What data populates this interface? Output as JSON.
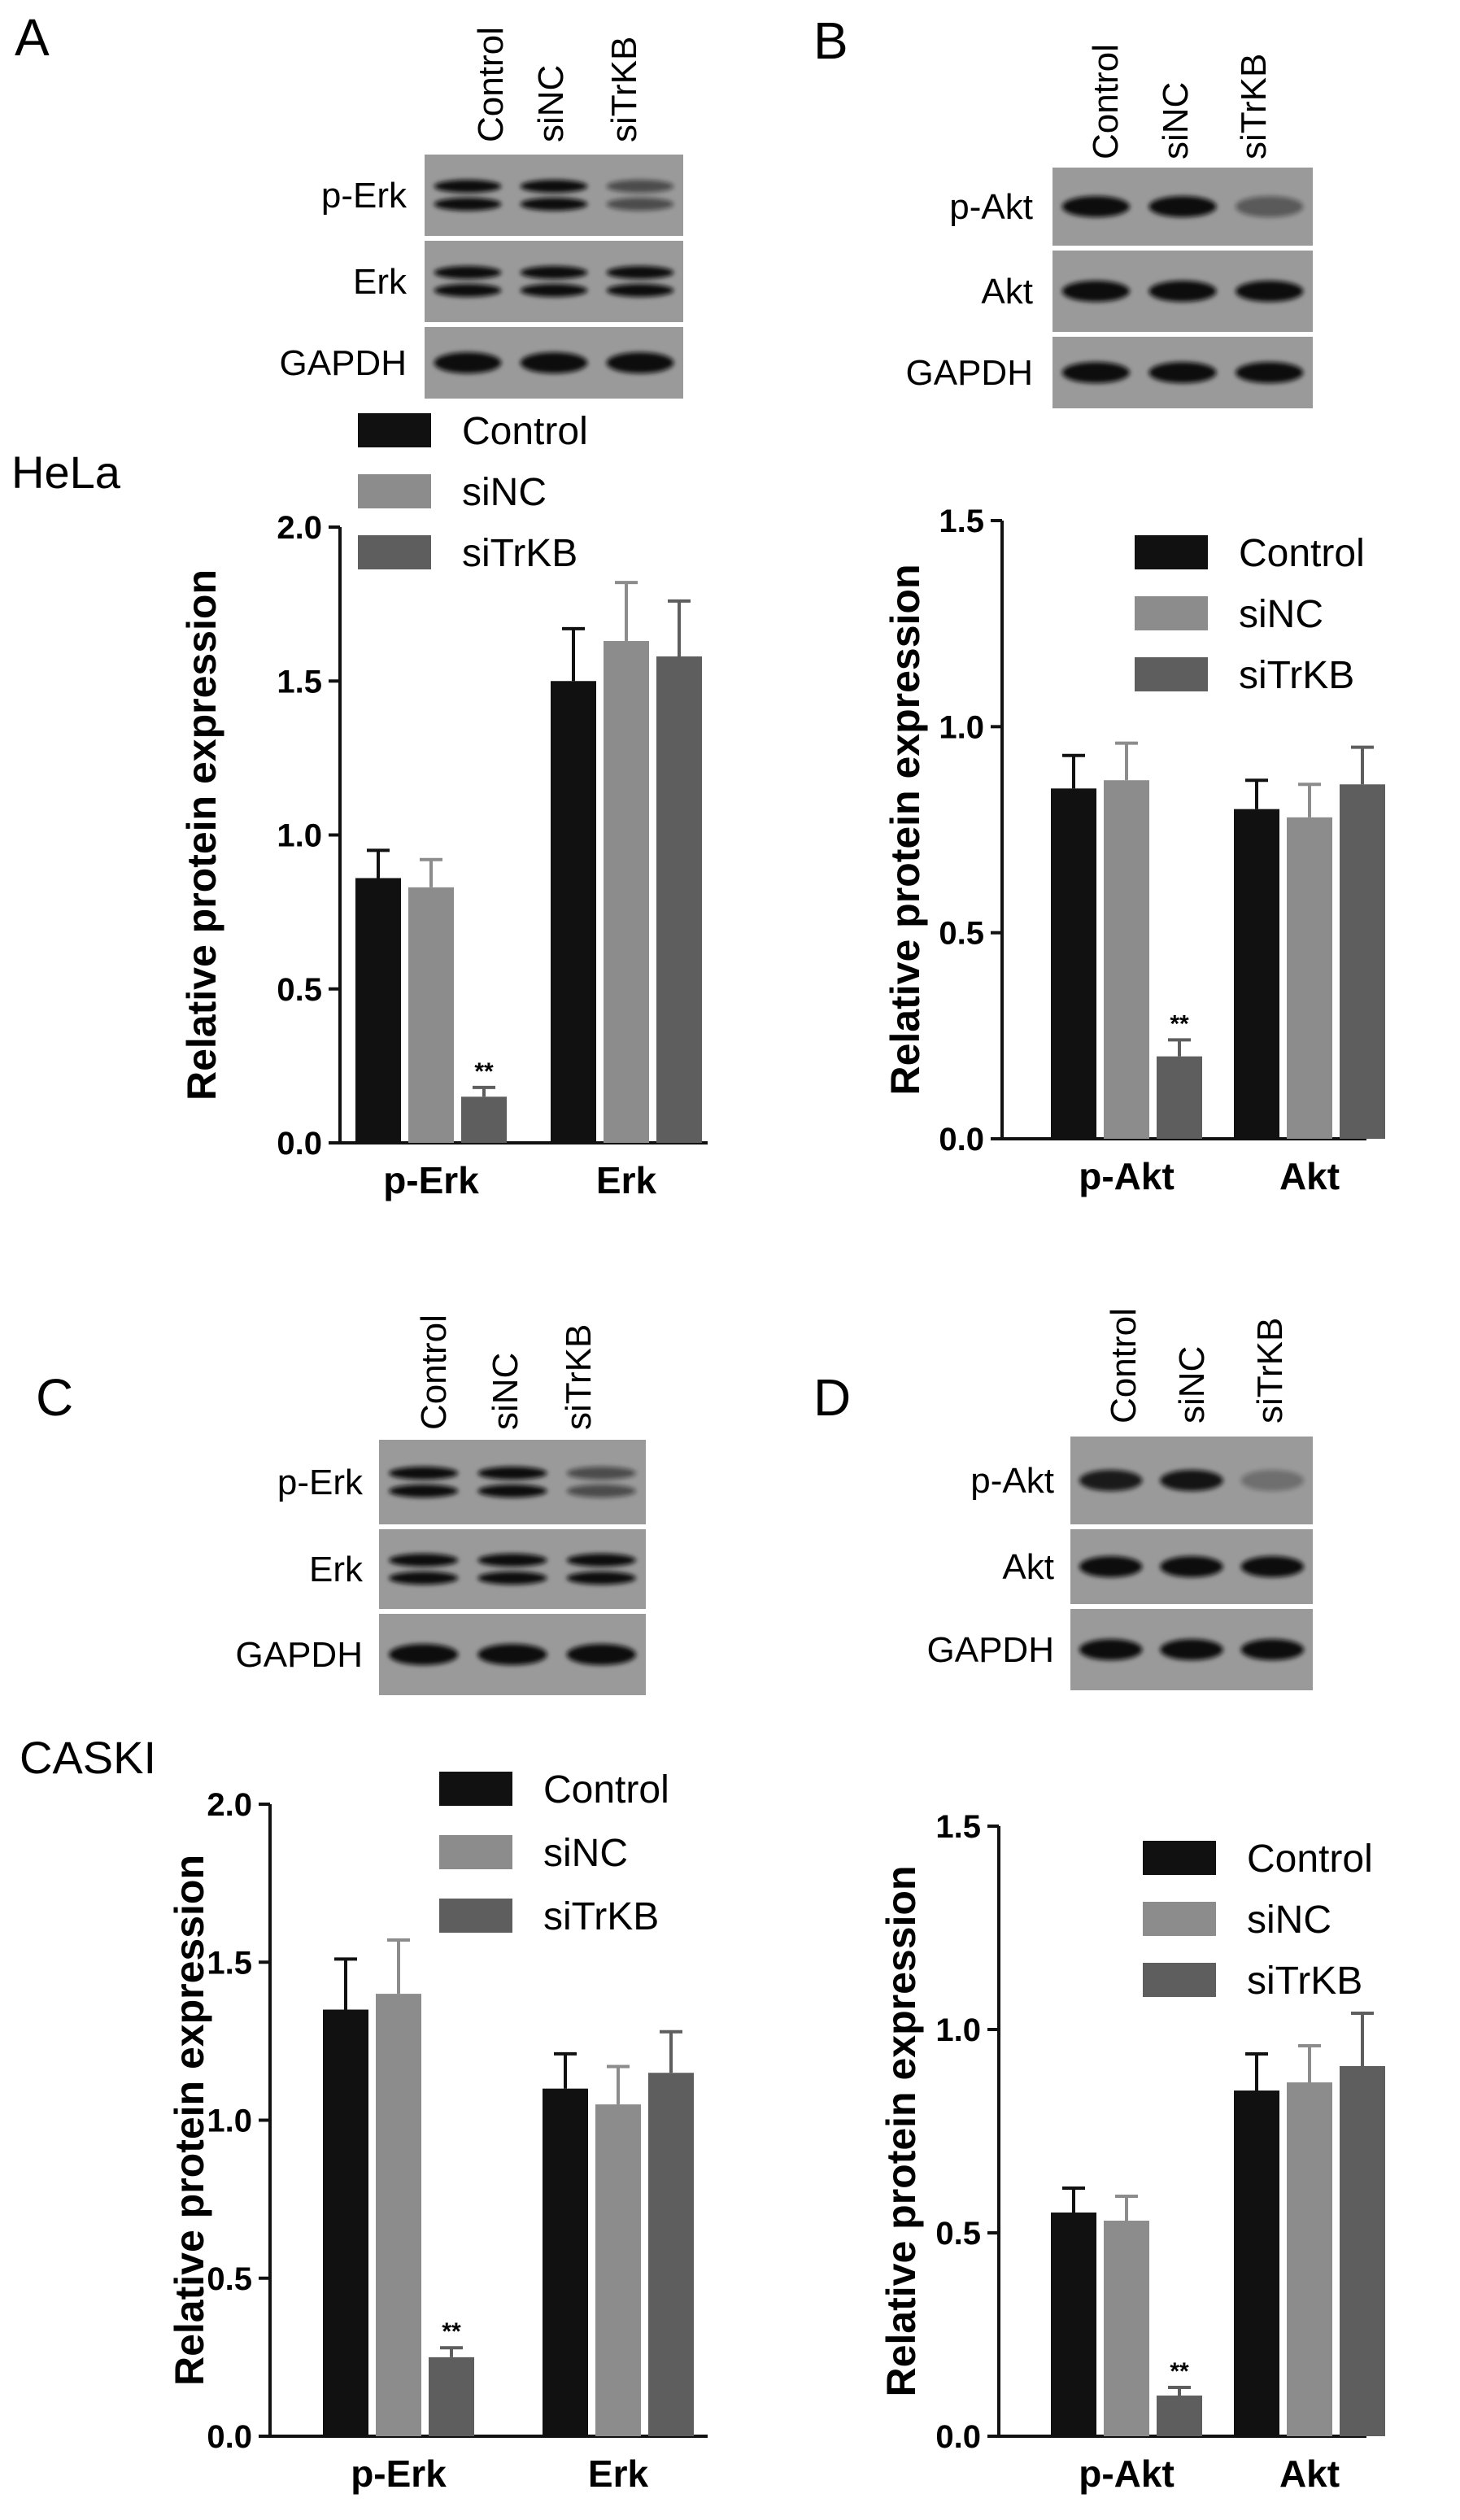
{
  "panel_letters": [
    "A",
    "B",
    "C",
    "D"
  ],
  "cell_lines": [
    "HeLa",
    "CASKI"
  ],
  "lanes": [
    "Control",
    "siNC",
    "siTrKB"
  ],
  "colors": {
    "Control": "#111111",
    "siNC": "#8c8c8c",
    "siTrKB": "#5e5e5e"
  },
  "blots": [
    {
      "panel": "A",
      "bands": [
        "p-Erk",
        "Erk",
        "GAPDH"
      ]
    },
    {
      "panel": "B",
      "bands": [
        "p-Akt",
        "Akt",
        "GAPDH"
      ]
    },
    {
      "panel": "C",
      "bands": [
        "p-Erk",
        "Erk",
        "GAPDH"
      ]
    },
    {
      "panel": "D",
      "bands": [
        "p-Akt",
        "Akt",
        "GAPDH"
      ]
    }
  ],
  "chart_data": [
    {
      "panel": "A",
      "type": "bar",
      "categories": [
        "p-Erk",
        "Erk"
      ],
      "series": [
        {
          "name": "Control",
          "values": [
            0.86,
            1.5
          ],
          "errors": [
            0.09,
            0.17
          ]
        },
        {
          "name": "siNC",
          "values": [
            0.83,
            1.63
          ],
          "errors": [
            0.09,
            0.19
          ]
        },
        {
          "name": "siTrKB",
          "values": [
            0.15,
            1.58
          ],
          "errors": [
            0.03,
            0.18
          ]
        }
      ],
      "annotations": [
        {
          "category": "p-Erk",
          "series": "siTrKB",
          "text": "**"
        }
      ],
      "ylabel": "Relative protein expression",
      "ylim": [
        0,
        2.0
      ],
      "yticks": [
        "0.0",
        "0.5",
        "1.0",
        "1.5",
        "2.0"
      ],
      "legend": "top-left"
    },
    {
      "panel": "B",
      "type": "bar",
      "categories": [
        "p-Akt",
        "Akt"
      ],
      "series": [
        {
          "name": "Control",
          "values": [
            0.85,
            0.8
          ],
          "errors": [
            0.08,
            0.07
          ]
        },
        {
          "name": "siNC",
          "values": [
            0.87,
            0.78
          ],
          "errors": [
            0.09,
            0.08
          ]
        },
        {
          "name": "siTrKB",
          "values": [
            0.2,
            0.86
          ],
          "errors": [
            0.04,
            0.09
          ]
        }
      ],
      "annotations": [
        {
          "category": "p-Akt",
          "series": "siTrKB",
          "text": "**"
        }
      ],
      "ylabel": "Relative protein expression",
      "ylim": [
        0,
        1.5
      ],
      "yticks": [
        "0.0",
        "0.5",
        "1.0",
        "1.5"
      ],
      "legend": "top-right"
    },
    {
      "panel": "C",
      "type": "bar",
      "categories": [
        "p-Erk",
        "Erk"
      ],
      "series": [
        {
          "name": "Control",
          "values": [
            1.35,
            1.1
          ],
          "errors": [
            0.16,
            0.11
          ]
        },
        {
          "name": "siNC",
          "values": [
            1.4,
            1.05
          ],
          "errors": [
            0.17,
            0.12
          ]
        },
        {
          "name": "siTrKB",
          "values": [
            0.25,
            1.15
          ],
          "errors": [
            0.03,
            0.13
          ]
        }
      ],
      "annotations": [
        {
          "category": "p-Erk",
          "series": "siTrKB",
          "text": "**"
        }
      ],
      "ylabel": "Relative protein expression",
      "ylim": [
        0,
        2.0
      ],
      "yticks": [
        "0.0",
        "0.5",
        "1.0",
        "1.5",
        "2.0"
      ],
      "legend": "top-right"
    },
    {
      "panel": "D",
      "type": "bar",
      "categories": [
        "p-Akt",
        "Akt"
      ],
      "series": [
        {
          "name": "Control",
          "values": [
            0.55,
            0.85
          ],
          "errors": [
            0.06,
            0.09
          ]
        },
        {
          "name": "siNC",
          "values": [
            0.53,
            0.87
          ],
          "errors": [
            0.06,
            0.09
          ]
        },
        {
          "name": "siTrKB",
          "values": [
            0.1,
            0.91
          ],
          "errors": [
            0.02,
            0.13
          ]
        }
      ],
      "annotations": [
        {
          "category": "p-Akt",
          "series": "siTrKB",
          "text": "**"
        }
      ],
      "ylabel": "Relative protein expression",
      "ylim": [
        0,
        1.5
      ],
      "yticks": [
        "0.0",
        "0.5",
        "1.0",
        "1.5"
      ],
      "legend": "top-right"
    }
  ]
}
